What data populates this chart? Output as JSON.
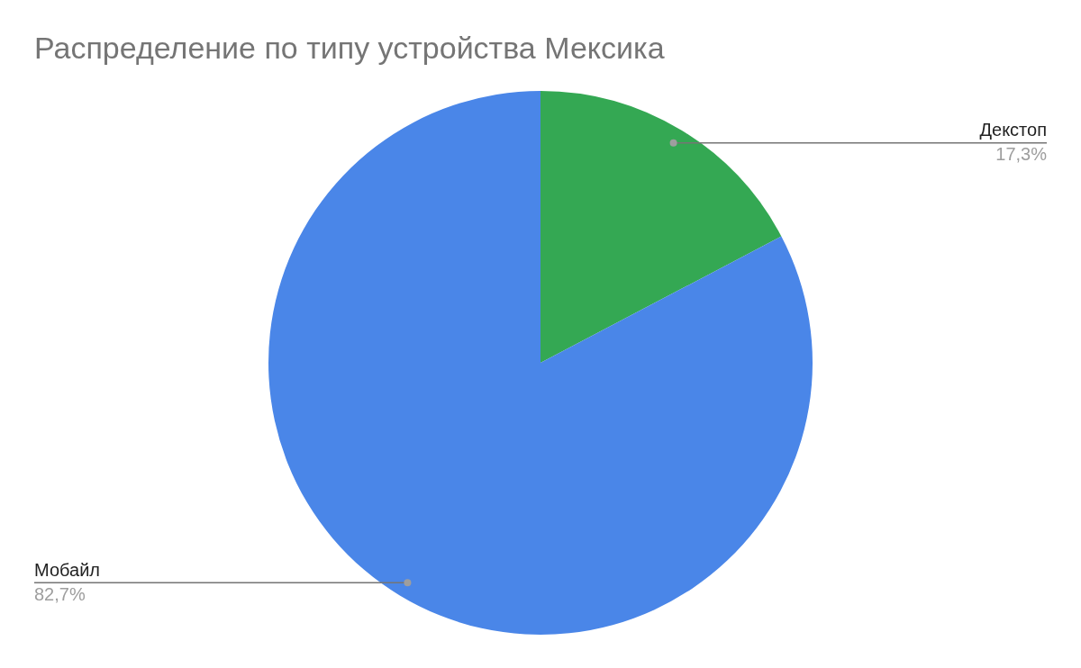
{
  "chart_data": {
    "type": "pie",
    "title": "Распределение по типу устройства Мексика",
    "categories": [
      "Декстоп",
      "Мобайл"
    ],
    "values": [
      17.3,
      82.7
    ],
    "colors": [
      "#34a853",
      "#4a86e8"
    ],
    "value_labels": [
      "17,3%",
      "82,7%"
    ]
  }
}
